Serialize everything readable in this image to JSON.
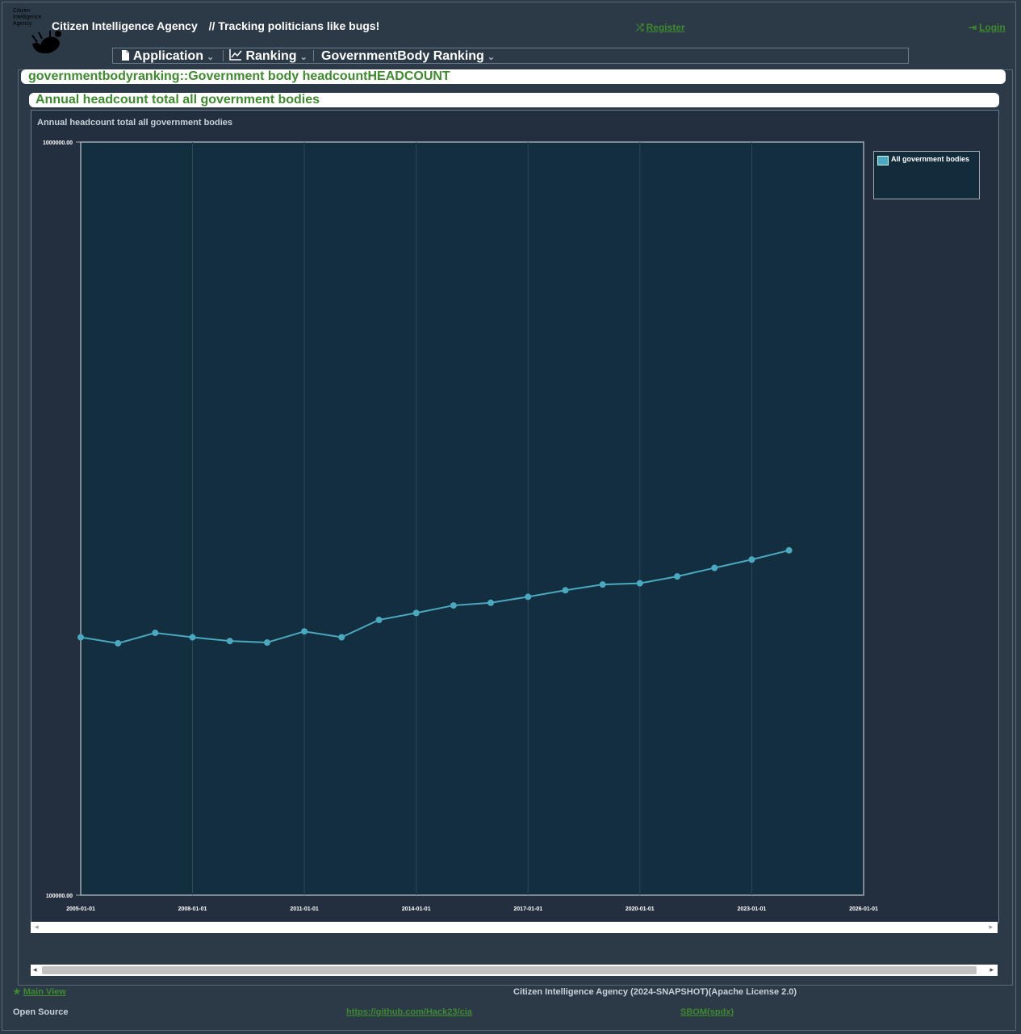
{
  "header": {
    "logo_text": [
      "Citizen",
      "Intelligence",
      "Agency"
    ],
    "app_name": "Citizen Intelligence Agency",
    "tagline": "// Tracking politicians like bugs!",
    "register_label": "Register",
    "login_label": "Login"
  },
  "menu": {
    "items": [
      {
        "label": "Application",
        "icon": "document-icon"
      },
      {
        "label": "Ranking",
        "icon": "line-chart-icon"
      },
      {
        "label": "GovernmentBody Ranking",
        "icon": ""
      }
    ]
  },
  "page": {
    "heading": "governmentbodyranking::Government body headcountHEADCOUNT",
    "subheading": "Annual headcount total all government bodies"
  },
  "chart_data": {
    "type": "line",
    "title": "Annual headcount total all government bodies",
    "y_scale": "log",
    "ylim": [
      100000,
      1000000
    ],
    "y_tick_labels": [
      "1000000.00",
      "100000.00"
    ],
    "x_tick_labels": [
      "2005-01-01",
      "2008-01-01",
      "2011-01-01",
      "2014-01-01",
      "2017-01-01",
      "2020-01-01",
      "2023-01-01",
      "2026-01-01"
    ],
    "xlim": [
      "2005-01-01",
      "2026-01-01"
    ],
    "legend_position": "right",
    "series": [
      {
        "name": "All government bodies",
        "color": "#4aa8c0",
        "x": [
          "2005-01-01",
          "2006-01-01",
          "2007-01-01",
          "2008-01-01",
          "2009-01-01",
          "2010-01-01",
          "2011-01-01",
          "2012-01-01",
          "2013-01-01",
          "2014-01-01",
          "2015-01-01",
          "2016-01-01",
          "2017-01-01",
          "2018-01-01",
          "2019-01-01",
          "2020-01-01",
          "2021-01-01",
          "2022-01-01",
          "2023-01-01",
          "2024-01-01"
        ],
        "y": [
          220000,
          216000,
          223000,
          220000,
          217500,
          216500,
          224000,
          220000,
          232000,
          237000,
          242500,
          244500,
          249000,
          254000,
          258500,
          259500,
          265000,
          272000,
          279000,
          287000
        ]
      }
    ]
  },
  "footer": {
    "main_view_label": "Main View",
    "version_text": "Citizen Intelligence Agency (2024-SNAPSHOT)(Apache License 2.0)",
    "open_source_label": "Open Source",
    "github_link": "https://github.com/Hack23/cia",
    "sbom_link": "SBOM(spdx)"
  }
}
